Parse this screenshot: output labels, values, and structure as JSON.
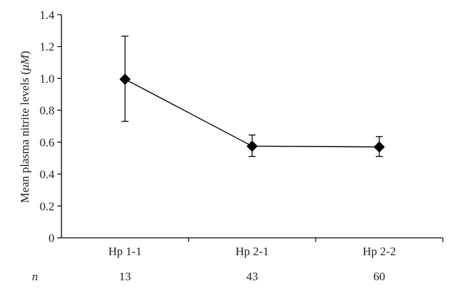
{
  "chart_data": {
    "type": "line",
    "title": "",
    "xlabel": "",
    "ylabel_parts": [
      "Mean plasma nitrite levels (",
      "μM",
      ")"
    ],
    "categories": [
      "Hp 1-1",
      "Hp 2-1",
      "Hp 2-2"
    ],
    "series": [
      {
        "values": [
          0.995,
          0.575,
          0.57
        ],
        "error_lower": [
          0.73,
          0.51,
          0.51
        ],
        "error_upper": [
          1.265,
          0.645,
          0.635
        ],
        "marker": "diamond",
        "color": "#000000"
      }
    ],
    "ylim": [
      0,
      1.4
    ],
    "yticks": [
      "0",
      "0.2",
      "0.4",
      "0.6",
      "0.8",
      "1.0",
      "1.2",
      "1.4"
    ],
    "grid": false,
    "n_row": {
      "label": "n",
      "values": [
        "13",
        "43",
        "60"
      ]
    }
  }
}
